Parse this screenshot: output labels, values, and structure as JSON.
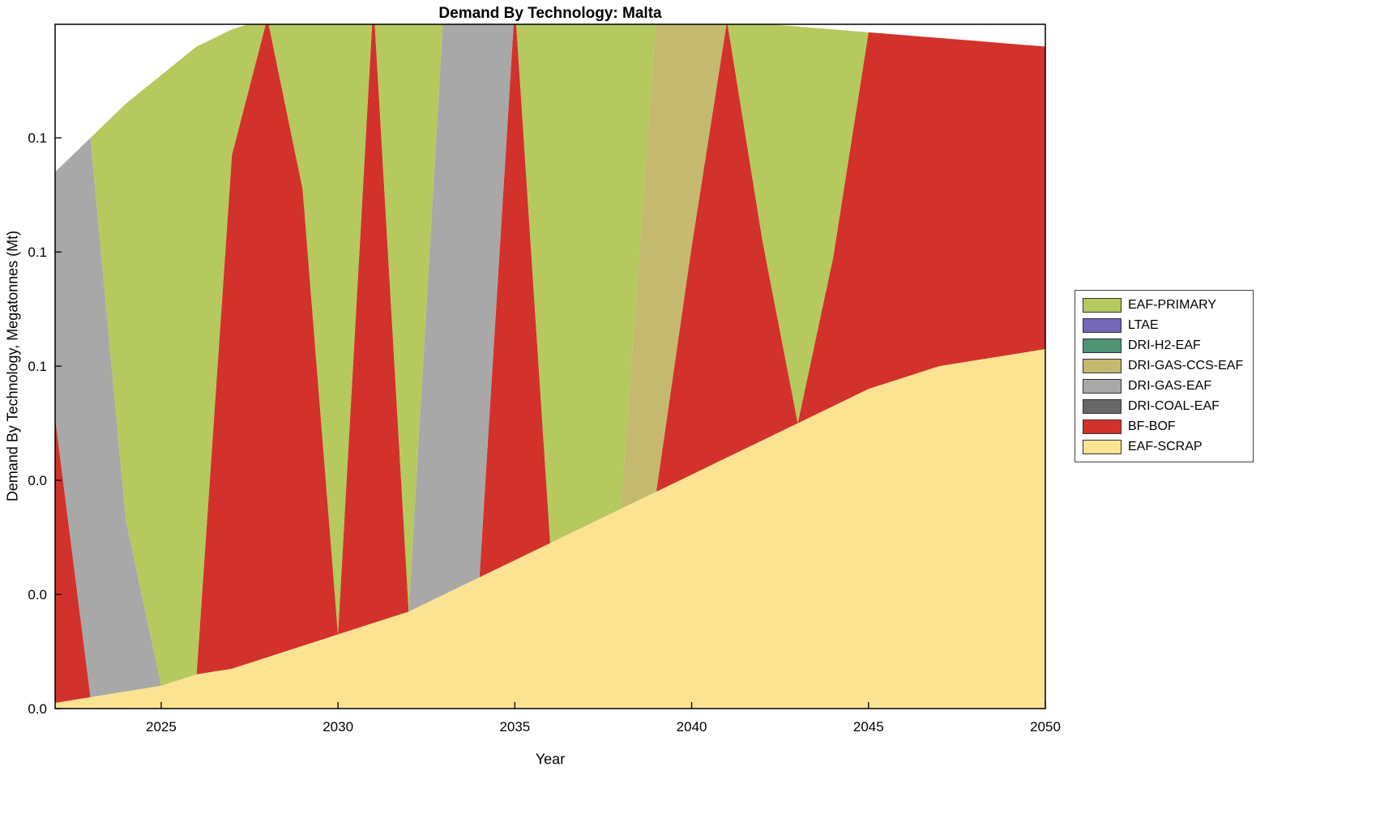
{
  "figure": {
    "title": "Demand By Technology: Malta",
    "xlabel": "Year",
    "ylabel": "Demand By Technology, Megatonnes (Mt)"
  },
  "chart_data": {
    "type": "area",
    "title": "Demand By Technology: Malta",
    "xlabel": "Year",
    "ylabel": "Demand By Technology, Megatonnes (Mt)",
    "stacked": true,
    "grid": false,
    "legend_position": "right-outside",
    "x_range": [
      2022,
      2050
    ],
    "y_range": [
      0,
      0.1199
    ],
    "x_ticks": {
      "values": [
        2025,
        2030,
        2035,
        2040,
        2045,
        2050
      ],
      "labels": [
        "2025",
        "2030",
        "2035",
        "2040",
        "2045",
        "2050"
      ]
    },
    "y_ticks": {
      "values": [
        0,
        0.02,
        0.04,
        0.06,
        0.08,
        0.1
      ],
      "labels": [
        "0.0",
        "0.0",
        "0.0",
        "0.1",
        "0.1",
        "0.1"
      ]
    },
    "years": [
      2022,
      2023,
      2024,
      2025,
      2026,
      2027,
      2028,
      2029,
      2030,
      2031,
      2032,
      2033,
      2034,
      2035,
      2036,
      2037,
      2038,
      2039,
      2040,
      2041,
      2042,
      2043,
      2044,
      2045,
      2046,
      2047,
      2048,
      2049,
      2050
    ],
    "series_note": "listed bottom-of-stack first; legend shows reverse order",
    "series": [
      {
        "name": "EAF-SCRAP",
        "color": "#fbe392",
        "values": [
          0.001,
          0.002,
          0.003,
          0.004,
          0.006,
          0.007,
          0.009,
          0.011,
          0.013,
          0.015,
          0.017,
          0.02,
          0.023,
          0.026,
          0.029,
          0.032,
          0.035,
          0.038,
          0.041,
          0.044,
          0.047,
          0.05,
          0.053,
          0.056,
          0.058,
          0.06,
          0.061,
          0.062,
          0.063
        ]
      },
      {
        "name": "BF-BOF",
        "color": "#d2322b",
        "values": [
          0.05,
          0,
          0,
          0,
          0,
          0.09,
          0.112,
          0.08,
          0,
          0.109,
          0,
          0,
          0,
          0.0975,
          0,
          0,
          0,
          0,
          0.04,
          0.0765,
          0.035,
          0,
          0.026,
          0.0625,
          0.06,
          0.0575,
          0.056,
          0.0545,
          0.053
        ]
      },
      {
        "name": "DRI-COAL-EAF",
        "color": "#676767",
        "values": [
          0,
          0,
          0,
          0,
          0,
          0,
          0,
          0,
          0,
          0,
          0,
          0,
          0,
          0,
          0,
          0,
          0,
          0,
          0,
          0,
          0,
          0,
          0,
          0,
          0,
          0,
          0,
          0,
          0
        ]
      },
      {
        "name": "DRI-GAS-EAF",
        "color": "#a8a8a8",
        "values": [
          0.043,
          0.098,
          0.03,
          0,
          0,
          0,
          0,
          0,
          0,
          0,
          0,
          0.104,
          0.101,
          0,
          0,
          0,
          0,
          0,
          0,
          0,
          0,
          0,
          0,
          0,
          0,
          0,
          0,
          0,
          0
        ]
      },
      {
        "name": "DRI-GAS-CCS-EAF",
        "color": "#c5b96f",
        "values": [
          0,
          0,
          0,
          0,
          0,
          0,
          0,
          0,
          0,
          0,
          0,
          0,
          0,
          0,
          0,
          0,
          0,
          0.0835,
          0.04,
          0,
          0,
          0,
          0,
          0,
          0,
          0,
          0,
          0,
          0
        ]
      },
      {
        "name": "DRI-H2-EAF",
        "color": "#4f9376",
        "values": [
          0,
          0,
          0,
          0,
          0,
          0,
          0,
          0,
          0,
          0,
          0,
          0,
          0,
          0,
          0,
          0,
          0,
          0,
          0,
          0,
          0,
          0,
          0,
          0,
          0,
          0,
          0,
          0,
          0
        ]
      },
      {
        "name": "LTAE",
        "color": "#7668b8",
        "values": [
          0,
          0,
          0,
          0,
          0,
          0,
          0,
          0,
          0,
          0,
          0,
          0,
          0,
          0,
          0,
          0,
          0,
          0,
          0,
          0,
          0,
          0,
          0,
          0,
          0,
          0,
          0,
          0,
          0
        ]
      },
      {
        "name": "EAF-PRIMARY",
        "color": "#b5c95e",
        "values": [
          0,
          0,
          0.073,
          0.107,
          0.11,
          0.022,
          0,
          0.0315,
          0.1105,
          0,
          0.107,
          0,
          0,
          0,
          0.094,
          0.0905,
          0.087,
          0,
          0,
          0,
          0.038,
          0.0695,
          0.04,
          0,
          0,
          0,
          0,
          0,
          0
        ]
      }
    ]
  }
}
